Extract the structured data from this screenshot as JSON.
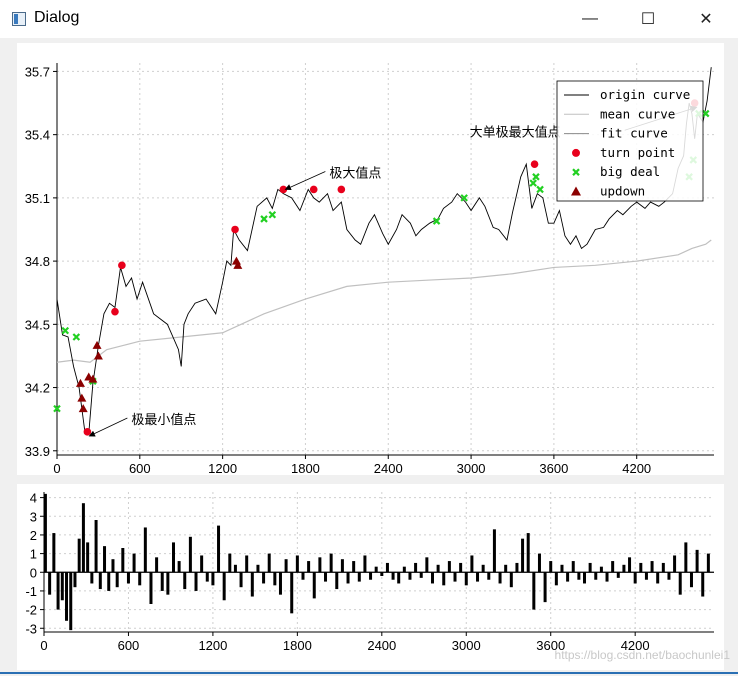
{
  "window": {
    "title": "Dialog"
  },
  "window_controls": {
    "minimize": "—",
    "maximize": "☐",
    "close": "✕"
  },
  "watermark": "https://blog.csdn.net/baochunlei1",
  "colors": {
    "origin": "#000000",
    "mean": "#c0c0c0",
    "fit": "#8a8a8a",
    "turn": "#e8001c",
    "big": "#22d022",
    "updown": "#8b0000",
    "bars": "#000000",
    "grid": "#cfcfcf"
  },
  "chart_data": [
    {
      "type": "line",
      "xlim": [
        0,
        4760
      ],
      "ylim": [
        33.88,
        35.74
      ],
      "xticks": [
        0,
        600,
        1200,
        1800,
        2400,
        3000,
        3600,
        4200
      ],
      "yticks": [
        33.9,
        34.2,
        34.5,
        34.8,
        35.1,
        35.4,
        35.7
      ],
      "xtick_labels": [
        "0",
        "600",
        "1200",
        "1800",
        "2400",
        "3000",
        "3600",
        "4200"
      ],
      "ytick_labels": [
        "33.9",
        "34.2",
        "34.5",
        "34.8",
        "35.1",
        "35.4",
        "35.7"
      ],
      "grid": true,
      "legend": {
        "placement": "top-right",
        "entries": [
          "origin curve",
          "mean curve",
          "fit curve",
          "turn point",
          "big deal",
          "updown"
        ]
      },
      "series": [
        {
          "name": "origin curve",
          "x": [
            0,
            40,
            80,
            120,
            160,
            200,
            230,
            260,
            300,
            340,
            380,
            420,
            460,
            500,
            540,
            580,
            620,
            700,
            800,
            880,
            900,
            920,
            950,
            1000,
            1080,
            1150,
            1200,
            1230,
            1260,
            1280,
            1320,
            1380,
            1450,
            1520,
            1560,
            1600,
            1640,
            1700,
            1760,
            1820,
            1860,
            1900,
            1960,
            2000,
            2060,
            2100,
            2160,
            2200,
            2260,
            2300,
            2360,
            2400,
            2460,
            2500,
            2560,
            2600,
            2640,
            2700,
            2760,
            2800,
            2860,
            2900,
            2960,
            3000,
            3060,
            3100,
            3160,
            3200,
            3260,
            3300,
            3360,
            3400,
            3440,
            3480,
            3520,
            3560,
            3600,
            3640,
            3680,
            3720,
            3760,
            3800,
            3840,
            3900,
            3960,
            4000,
            4060,
            4100,
            4160,
            4200,
            4260,
            4300,
            4360,
            4400,
            4460,
            4500,
            4540,
            4560,
            4580,
            4600,
            4620,
            4640,
            4680,
            4710,
            4740
          ],
          "y": [
            34.62,
            34.45,
            34.44,
            34.3,
            34.2,
            34.0,
            33.98,
            34.22,
            34.4,
            34.55,
            34.6,
            34.58,
            34.77,
            34.68,
            34.72,
            34.62,
            34.7,
            34.55,
            34.5,
            34.38,
            34.3,
            34.5,
            34.55,
            34.6,
            34.62,
            34.55,
            34.7,
            34.8,
            34.78,
            34.95,
            34.9,
            34.85,
            35.06,
            35.1,
            35.05,
            35.14,
            35.12,
            35.1,
            35.04,
            35.14,
            35.1,
            35.08,
            35.12,
            35.04,
            35.08,
            34.95,
            34.9,
            34.88,
            34.98,
            35.02,
            34.93,
            34.88,
            34.95,
            35.02,
            34.98,
            34.92,
            34.95,
            34.98,
            35.0,
            35.05,
            35.08,
            35.12,
            35.08,
            35.04,
            35.1,
            35.06,
            34.96,
            34.95,
            34.9,
            35.03,
            35.2,
            35.26,
            35.05,
            35.12,
            35.1,
            34.98,
            34.98,
            35.04,
            34.92,
            34.88,
            34.92,
            34.86,
            34.88,
            34.95,
            34.96,
            35.0,
            35.04,
            35.02,
            35.06,
            35.08,
            35.05,
            35.08,
            35.06,
            35.08,
            35.12,
            35.24,
            35.3,
            35.45,
            35.55,
            35.5,
            35.38,
            35.5,
            35.46,
            35.56,
            35.72
          ]
        },
        {
          "name": "mean curve",
          "x": [
            0,
            120,
            240,
            360,
            480,
            600,
            900,
            1200,
            1500,
            1800,
            2100,
            2400,
            2700,
            3000,
            3300,
            3600,
            3900,
            4200,
            4500,
            4600,
            4700,
            4740
          ],
          "y": [
            34.32,
            34.33,
            34.32,
            34.38,
            34.4,
            34.42,
            34.44,
            34.46,
            34.55,
            34.62,
            34.68,
            34.7,
            34.71,
            34.72,
            34.74,
            34.77,
            34.78,
            34.8,
            34.83,
            34.86,
            34.88,
            34.9
          ]
        }
      ],
      "turn_points": {
        "x": [
          220,
          420,
          470,
          1290,
          1640,
          1860,
          2060,
          3460,
          4620
        ],
        "y": [
          33.99,
          34.56,
          34.78,
          34.95,
          35.14,
          35.14,
          35.14,
          35.26,
          35.55
        ]
      },
      "big_deal": {
        "x": [
          0,
          60,
          140,
          260,
          1500,
          1560,
          2750,
          2950,
          3450,
          3470,
          3500,
          4580,
          4610,
          4650,
          4700
        ],
        "y": [
          34.1,
          34.47,
          34.44,
          34.23,
          35.0,
          35.02,
          34.99,
          35.1,
          35.17,
          35.2,
          35.14,
          35.2,
          35.28,
          35.5,
          35.5
        ]
      },
      "updown": {
        "x": [
          170,
          180,
          190,
          230,
          260,
          290,
          300,
          1300,
          1310
        ],
        "y": [
          34.22,
          34.15,
          34.1,
          34.25,
          34.24,
          34.4,
          34.35,
          34.8,
          34.78
        ]
      },
      "annotations": [
        {
          "text": "极大值点",
          "x": 1640,
          "y": 35.14
        },
        {
          "text": "极最小值点",
          "x": 220,
          "y": 33.97
        },
        {
          "text": "大单极最大值点",
          "x": 4620,
          "y": 35.53
        }
      ]
    },
    {
      "type": "bar",
      "xlim": [
        0,
        4760
      ],
      "ylim": [
        -3.2,
        4.3
      ],
      "xticks": [
        0,
        600,
        1200,
        1800,
        2400,
        3000,
        3600,
        4200
      ],
      "yticks": [
        -3,
        -2,
        -1,
        0,
        1,
        2,
        3,
        4
      ],
      "xtick_labels": [
        "0",
        "600",
        "1200",
        "1800",
        "2400",
        "3000",
        "3600",
        "4200"
      ],
      "ytick_labels": [
        "-3",
        "-2",
        "-1",
        "0",
        "1",
        "2",
        "3",
        "4"
      ],
      "grid": true,
      "x": [
        10,
        40,
        70,
        100,
        130,
        160,
        190,
        220,
        250,
        280,
        310,
        340,
        370,
        400,
        430,
        460,
        490,
        520,
        560,
        600,
        640,
        680,
        720,
        760,
        800,
        840,
        880,
        920,
        960,
        1000,
        1040,
        1080,
        1120,
        1160,
        1200,
        1240,
        1280,
        1320,
        1360,
        1400,
        1440,
        1480,
        1520,
        1560,
        1600,
        1640,
        1680,
        1720,
        1760,
        1800,
        1840,
        1880,
        1920,
        1960,
        2000,
        2040,
        2080,
        2120,
        2160,
        2200,
        2240,
        2280,
        2320,
        2360,
        2400,
        2440,
        2480,
        2520,
        2560,
        2600,
        2640,
        2680,
        2720,
        2760,
        2800,
        2840,
        2880,
        2920,
        2960,
        3000,
        3040,
        3080,
        3120,
        3160,
        3200,
        3240,
        3280,
        3320,
        3360,
        3400,
        3440,
        3480,
        3520,
        3560,
        3600,
        3640,
        3680,
        3720,
        3760,
        3800,
        3840,
        3880,
        3920,
        3960,
        4000,
        4040,
        4080,
        4120,
        4160,
        4200,
        4240,
        4280,
        4320,
        4360,
        4400,
        4440,
        4480,
        4520,
        4560,
        4600,
        4640,
        4680,
        4720
      ],
      "values": [
        4.2,
        -1.2,
        2.1,
        -2.0,
        -1.5,
        -2.6,
        -3.1,
        -0.8,
        1.8,
        3.7,
        1.6,
        -0.6,
        2.8,
        -0.9,
        1.4,
        -1.0,
        0.7,
        -0.8,
        1.3,
        -0.6,
        1.0,
        -0.7,
        2.4,
        -1.7,
        0.8,
        -1.0,
        -1.2,
        1.6,
        0.6,
        -0.9,
        1.9,
        -1.0,
        0.9,
        -0.5,
        -0.7,
        2.5,
        -1.5,
        1.0,
        0.4,
        -0.8,
        0.9,
        -1.3,
        0.4,
        -0.6,
        1.0,
        -0.7,
        -1.2,
        0.7,
        -2.2,
        0.9,
        -0.4,
        0.6,
        -1.4,
        0.8,
        -0.5,
        1.0,
        -0.9,
        0.7,
        -0.6,
        0.6,
        -0.5,
        0.9,
        -0.4,
        0.3,
        -0.2,
        0.5,
        -0.4,
        -0.6,
        0.3,
        -0.4,
        0.5,
        -0.3,
        0.8,
        -0.6,
        0.4,
        -0.7,
        0.6,
        -0.5,
        0.5,
        -0.7,
        0.9,
        -0.5,
        0.4,
        -0.4,
        2.3,
        -0.6,
        0.4,
        -0.8,
        0.5,
        1.8,
        2.1,
        -2.0,
        1.0,
        -1.6,
        0.6,
        -0.7,
        0.4,
        -0.5,
        0.6,
        -0.4,
        -0.6,
        0.5,
        -0.4,
        0.3,
        -0.5,
        0.6,
        -0.3,
        0.4,
        0.8,
        -0.6,
        0.5,
        -0.4,
        0.6,
        -0.6,
        0.5,
        -0.4,
        0.9,
        -1.2,
        1.6,
        -0.8,
        1.2,
        -1.3,
        1.0
      ]
    }
  ]
}
